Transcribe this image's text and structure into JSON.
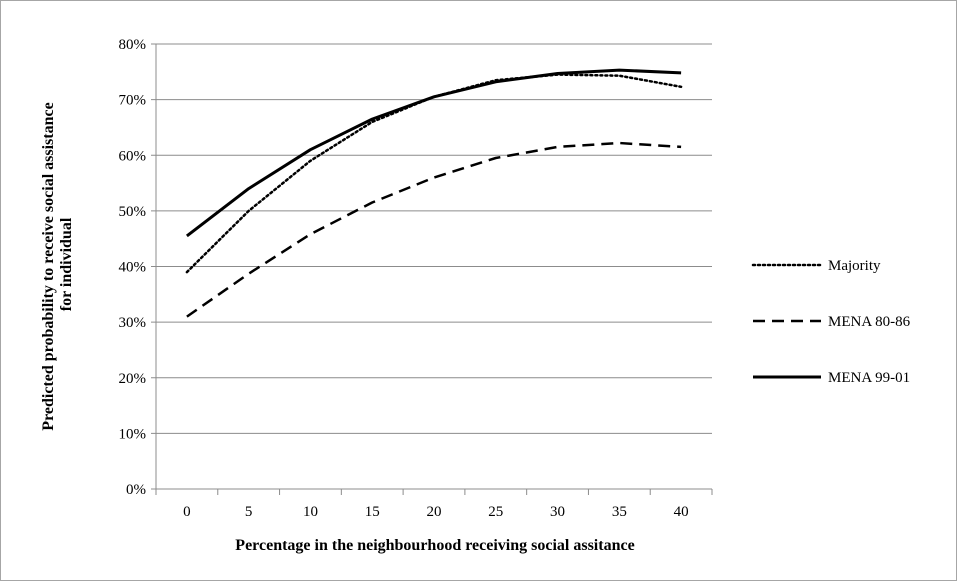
{
  "chart_data": {
    "type": "line",
    "title": "",
    "xlabel": "Percentage in the neighbourhood receiving social assitance",
    "ylabel_lines": [
      "Predicted probability to receive social assistance",
      "for individual"
    ],
    "categories": [
      "0",
      "5",
      "10",
      "15",
      "20",
      "25",
      "30",
      "35",
      "40"
    ],
    "x": [
      0,
      5,
      10,
      15,
      20,
      25,
      30,
      35,
      40
    ],
    "yticks": [
      "0%",
      "10%",
      "20%",
      "30%",
      "40%",
      "50%",
      "60%",
      "70%",
      "80%"
    ],
    "ylim": [
      0,
      80
    ],
    "grid": true,
    "legend_position": "right",
    "series": [
      {
        "name": "Majority",
        "style": "dotted",
        "color": "#000000",
        "values": [
          39,
          50,
          59,
          66,
          70.5,
          73.5,
          74.5,
          74.3,
          72.3
        ]
      },
      {
        "name": "MENA 80-86",
        "style": "dashed",
        "color": "#000000",
        "values": [
          31,
          38.7,
          45.8,
          51.5,
          56,
          59.5,
          61.5,
          62.2,
          61.5
        ]
      },
      {
        "name": "MENA 99-01",
        "style": "solid",
        "color": "#000000",
        "values": [
          45.5,
          54,
          61,
          66.5,
          70.5,
          73.2,
          74.7,
          75.3,
          74.8
        ]
      }
    ]
  }
}
